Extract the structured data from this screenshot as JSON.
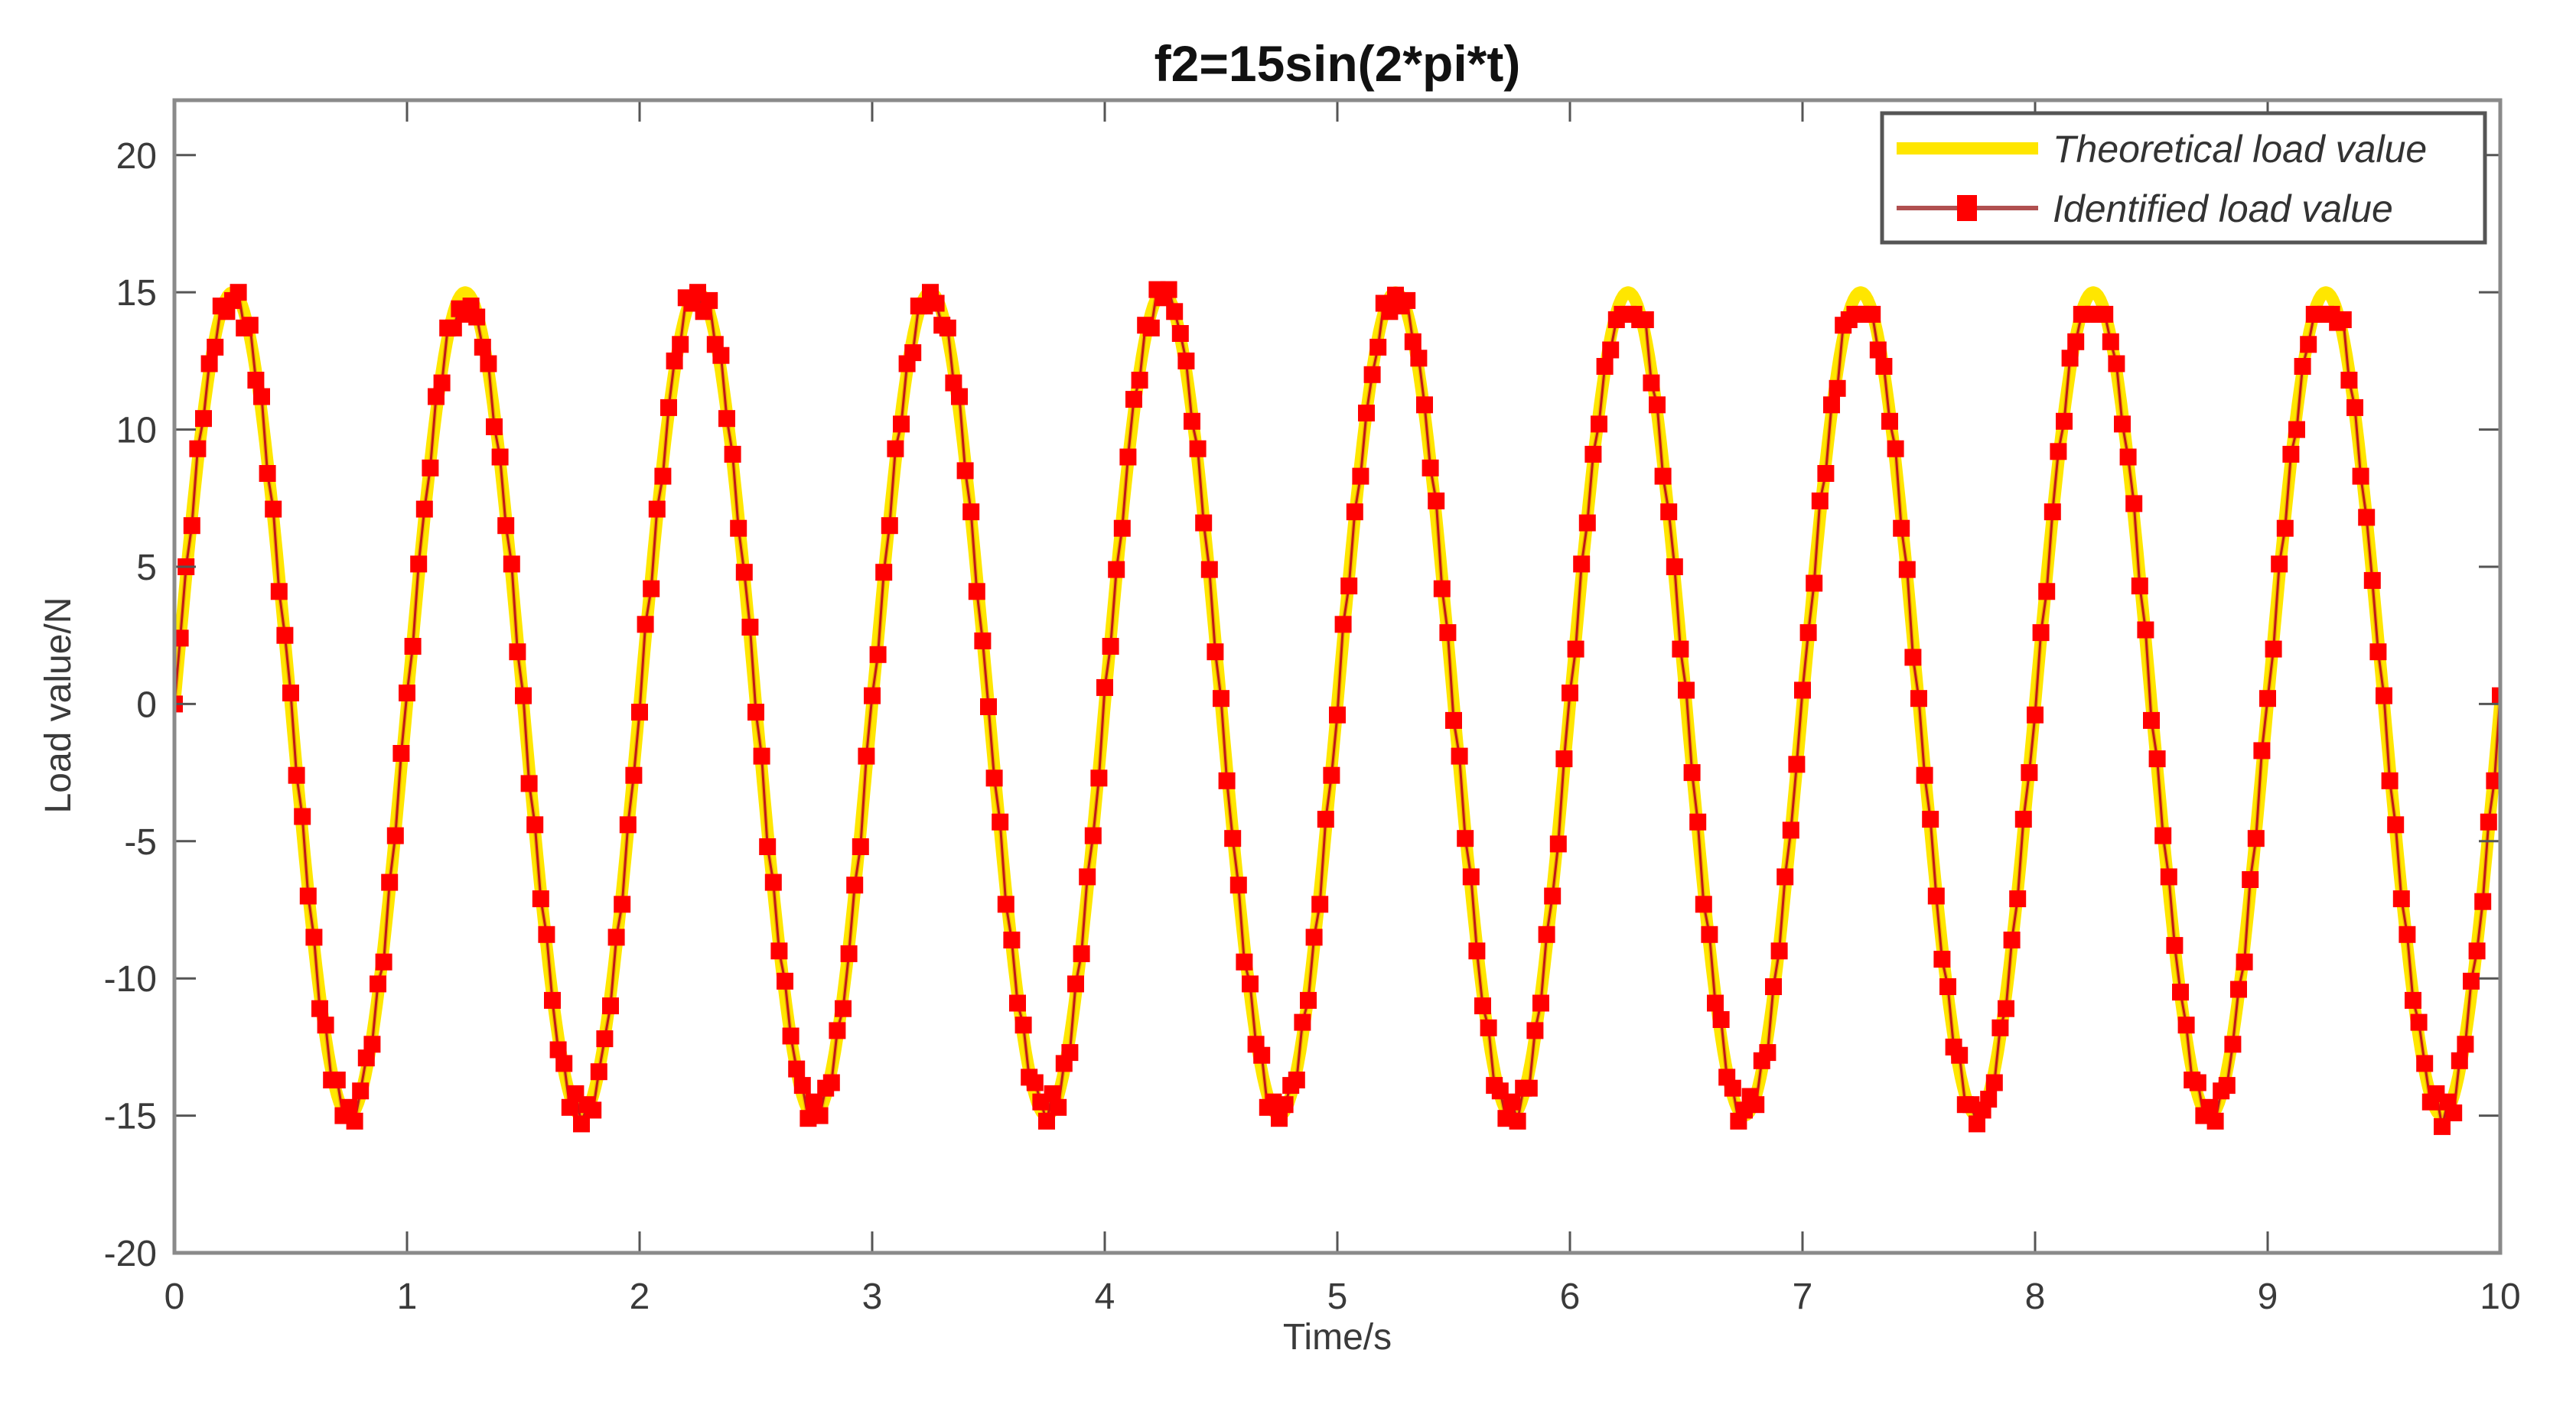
{
  "chart_data": {
    "type": "line",
    "title": "f2=15sin(2*pi*t)",
    "xlabel": "Time/s",
    "ylabel": "Load value/N",
    "xlim": [
      0,
      10
    ],
    "ylim": [
      -20,
      22
    ],
    "xticks": [
      0,
      1,
      2,
      3,
      4,
      5,
      6,
      7,
      8,
      9,
      10
    ],
    "yticks": [
      -20,
      -15,
      -10,
      -5,
      0,
      5,
      10,
      15,
      20
    ],
    "grid": false,
    "legend_position": "upper right",
    "series": [
      {
        "name": "Theoretical load value",
        "style": "thick solid line",
        "color": "#ffe600",
        "function": {
          "amplitude": 15,
          "frequency_hz": 1,
          "expr": "15*sin(2*pi*t)"
        },
        "dt": 0.01
      },
      {
        "name": "Identified load value",
        "style": "thin line with square markers",
        "color": "#ff0000",
        "line_color": "#b01010",
        "t_start": 0,
        "dt": 0.025,
        "values": [
          0.0,
          2.4,
          5.0,
          6.5,
          9.3,
          10.4,
          12.4,
          13.0,
          14.5,
          14.3,
          14.7,
          15.0,
          13.7,
          13.8,
          11.8,
          11.2,
          8.4,
          7.1,
          4.1,
          2.5,
          0.4,
          -2.6,
          -4.1,
          -7.0,
          -8.5,
          -11.1,
          -11.7,
          -13.7,
          -13.7,
          -15.0,
          -14.7,
          -15.2,
          -14.1,
          -12.9,
          -12.4,
          -10.2,
          -9.4,
          -6.5,
          -4.8,
          -1.8,
          0.4,
          2.1,
          5.1,
          7.1,
          8.6,
          11.2,
          11.7,
          13.7,
          13.7,
          14.4,
          14.2,
          14.5,
          14.1,
          13.0,
          12.4,
          10.1,
          9.0,
          6.5,
          5.1,
          1.9,
          0.3,
          -2.9,
          -4.4,
          -7.1,
          -8.4,
          -10.8,
          -12.6,
          -13.1,
          -14.7,
          -14.2,
          -15.3,
          -14.6,
          -14.8,
          -13.4,
          -12.2,
          -11.0,
          -8.5,
          -7.3,
          -4.4,
          -2.6,
          -0.3,
          2.9,
          4.2,
          7.1,
          8.3,
          10.8,
          12.5,
          13.1,
          14.8,
          14.6,
          15.0,
          14.3,
          14.7,
          13.1,
          12.7,
          10.4,
          9.1,
          6.4,
          4.8,
          2.8,
          -0.3,
          -1.9,
          -5.2,
          -6.5,
          -9.0,
          -10.1,
          -12.1,
          -13.3,
          -13.9,
          -15.1,
          -14.5,
          -15.0,
          -14.0,
          -13.8,
          -11.9,
          -11.1,
          -9.1,
          -6.6,
          -5.2,
          -1.9,
          0.3,
          1.8,
          4.8,
          6.5,
          9.3,
          10.2,
          12.4,
          12.8,
          14.5,
          14.5,
          15.0,
          14.6,
          13.8,
          13.7,
          11.7,
          11.2,
          8.5,
          7.0,
          4.1,
          2.3,
          -0.1,
          -2.7,
          -4.3,
          -7.3,
          -8.6,
          -10.9,
          -11.7,
          -13.6,
          -13.8,
          -14.5,
          -15.2,
          -14.2,
          -14.7,
          -13.1,
          -12.7,
          -10.2,
          -9.1,
          -6.3,
          -4.8,
          -2.7,
          0.6,
          2.1,
          4.9,
          6.4,
          9.0,
          11.1,
          11.8,
          13.8,
          13.7,
          15.1,
          14.8,
          15.1,
          14.3,
          13.5,
          12.5,
          10.3,
          9.3,
          6.6,
          4.9,
          1.9,
          0.2,
          -2.8,
          -4.9,
          -6.6,
          -9.4,
          -10.2,
          -12.4,
          -12.8,
          -14.7,
          -14.5,
          -15.1,
          -14.6,
          -13.9,
          -13.7,
          -11.6,
          -10.8,
          -8.5,
          -7.3,
          -4.2,
          -2.6,
          -0.4,
          2.9,
          4.3,
          7.0,
          8.3,
          10.6,
          12.0,
          13.0,
          14.6,
          14.3,
          14.9,
          14.5,
          14.7,
          13.2,
          12.6,
          10.9,
          8.6,
          7.4,
          4.2,
          2.6,
          -0.6,
          -1.9,
          -4.9,
          -6.3,
          -9.0,
          -11.0,
          -11.8,
          -13.9,
          -14.1,
          -15.1,
          -14.5,
          -15.2,
          -14.0,
          -14.0,
          -11.9,
          -10.9,
          -8.4,
          -7.0,
          -5.1,
          -2.0,
          0.4,
          2.0,
          5.1,
          6.6,
          9.1,
          10.2,
          12.3,
          12.9,
          14.0,
          14.2,
          14.2,
          14.2,
          14.0,
          14.0,
          11.7,
          10.9,
          8.3,
          7.0,
          5.0,
          2.0,
          0.5,
          -2.5,
          -4.3,
          -7.3,
          -8.4,
          -10.9,
          -11.5,
          -13.6,
          -14.0,
          -15.2,
          -14.8,
          -14.3,
          -14.6,
          -13.0,
          -12.7,
          -10.3,
          -9.0,
          -6.3,
          -4.6,
          -2.2,
          0.5,
          2.6,
          4.4,
          7.4,
          8.4,
          10.9,
          11.5,
          13.8,
          14.0,
          14.2,
          14.2,
          14.2,
          14.2,
          12.9,
          12.3,
          10.3,
          9.3,
          6.4,
          4.9,
          1.7,
          0.2,
          -2.6,
          -4.2,
          -7.0,
          -9.3,
          -10.3,
          -12.5,
          -12.8,
          -14.6,
          -14.6,
          -15.3,
          -14.8,
          -14.4,
          -13.8,
          -11.8,
          -11.1,
          -8.6,
          -7.1,
          -4.2,
          -2.5,
          -0.4,
          2.6,
          4.1,
          7.0,
          9.2,
          10.3,
          12.6,
          13.2,
          14.2,
          14.2,
          14.2,
          14.2,
          14.2,
          13.2,
          12.4,
          10.2,
          9.0,
          7.3,
          4.3,
          2.7,
          -0.6,
          -2.0,
          -4.8,
          -6.3,
          -8.8,
          -10.5,
          -11.7,
          -13.7,
          -13.8,
          -15.0,
          -14.7,
          -15.2,
          -14.1,
          -13.9,
          -12.4,
          -10.4,
          -9.4,
          -6.4,
          -4.9,
          -1.7,
          0.2,
          2.0,
          5.1,
          6.4,
          9.1,
          10.0,
          12.3,
          13.1,
          14.2,
          14.2,
          14.2,
          14.2,
          13.9,
          14.0,
          11.8,
          10.8,
          8.3,
          6.8,
          4.5,
          1.9,
          0.3,
          -2.8,
          -4.4,
          -7.1,
          -8.4,
          -10.8,
          -11.6,
          -13.1,
          -14.5,
          -14.2,
          -15.4,
          -14.5,
          -14.9,
          -13.0,
          -12.4,
          -10.1,
          -9.0,
          -7.2,
          -4.3,
          -2.8,
          0.3
        ]
      }
    ]
  },
  "plot": {
    "title": "f2=15sin(2*pi*t)",
    "xlabel": "Time/s",
    "ylabel": "Load value/N",
    "legend": [
      {
        "label": "Theoretical load value",
        "color": "#ffe600"
      },
      {
        "label": "Identified load value",
        "color": "#ff0000",
        "line_color": "#b05050"
      }
    ]
  }
}
